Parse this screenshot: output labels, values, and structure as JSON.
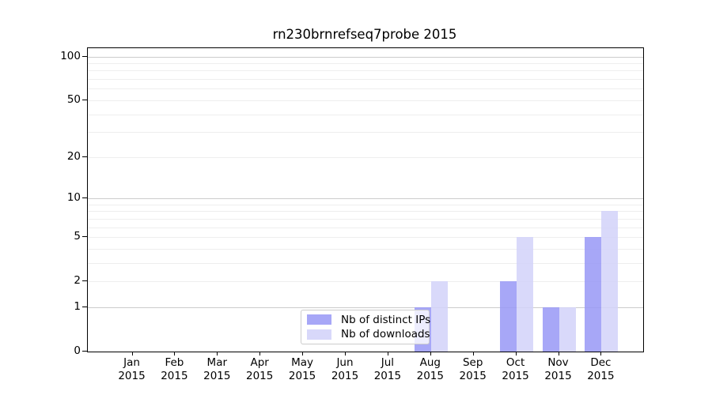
{
  "chart_data": {
    "type": "bar",
    "title": "rn230brnrefseq7probe 2015",
    "categories": [
      "Jan 2015",
      "Feb 2015",
      "Mar 2015",
      "Apr 2015",
      "May 2015",
      "Jun 2015",
      "Jul 2015",
      "Aug 2015",
      "Sep 2015",
      "Oct 2015",
      "Nov 2015",
      "Dec 2015"
    ],
    "series": [
      {
        "name": "Nb of distinct IPs",
        "color": "rgba(152,152,246,0.85)",
        "swatch_color": "#a7a7f7",
        "values": [
          0,
          0,
          0,
          0,
          0,
          0,
          0,
          1,
          0,
          2,
          1,
          5
        ]
      },
      {
        "name": "Nb of downloads",
        "color": "rgba(210,210,249,0.85)",
        "swatch_color": "#d8d8fa",
        "values": [
          0,
          0,
          0,
          0,
          0,
          0,
          0,
          2,
          0,
          5,
          1,
          8
        ]
      }
    ],
    "y_scale": "log1p",
    "y_max": 114,
    "y_ticks": [
      0,
      1,
      2,
      5,
      10,
      20,
      50,
      100
    ],
    "grid_major": [
      1,
      10,
      100
    ],
    "grid_minor": [
      2,
      3,
      4,
      5,
      6,
      7,
      8,
      9,
      20,
      30,
      40,
      50,
      60,
      70,
      80,
      90
    ],
    "grid_on": true,
    "legend_position": "lower center",
    "colors": {
      "grid_major": "#cccccc",
      "grid_minor": "#eeeeee",
      "spine": "#000000",
      "text": "#000000",
      "background": "#ffffff"
    }
  }
}
